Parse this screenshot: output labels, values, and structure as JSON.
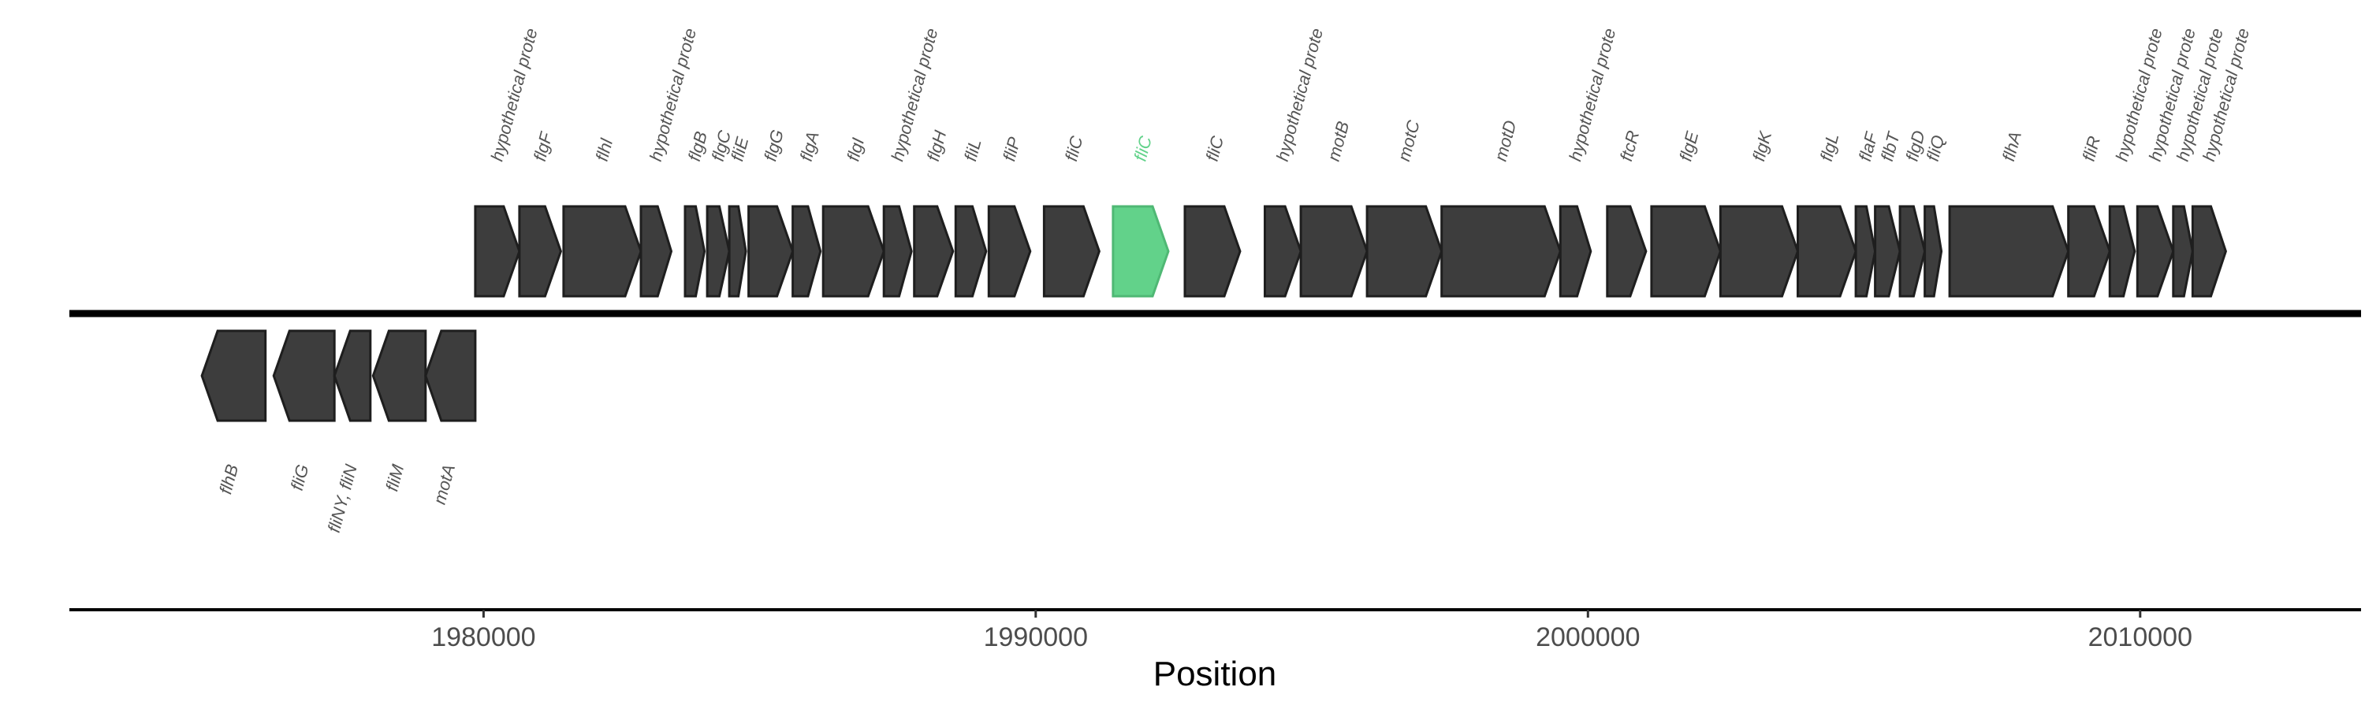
{
  "chart_data": {
    "type": "gene_map",
    "title": "",
    "xlabel": "Position",
    "ylabel": "",
    "xlim": [
      1972500,
      2014000
    ],
    "x_ticks": [
      1980000,
      1990000,
      2000000,
      2010000
    ],
    "x_tick_labels": [
      "1980000",
      "1990000",
      "2000000",
      "2010000"
    ],
    "grid": false,
    "legend": "none",
    "colors": {
      "default": "#3d3d3d",
      "highlight": "#62d28a",
      "label_default": "#555555",
      "label_highlight": "#62d28a",
      "outline": "#1e1e1e"
    },
    "genes": [
      {
        "name": "flhB",
        "start": 1974900,
        "end": 1976050,
        "strand": -1,
        "highlight": false
      },
      {
        "name": "fliG",
        "start": 1976200,
        "end": 1977300,
        "strand": -1,
        "highlight": false
      },
      {
        "name": "fliNY, fliN",
        "start": 1977300,
        "end": 1977950,
        "strand": -1,
        "highlight": false
      },
      {
        "name": "fliM",
        "start": 1978000,
        "end": 1978950,
        "strand": -1,
        "highlight": false
      },
      {
        "name": "motA",
        "start": 1978950,
        "end": 1979850,
        "strand": -1,
        "highlight": false
      },
      {
        "name": "hypothetical prote",
        "start": 1979850,
        "end": 1980650,
        "strand": 1,
        "highlight": false
      },
      {
        "name": "flgF",
        "start": 1980650,
        "end": 1981400,
        "strand": 1,
        "highlight": false
      },
      {
        "name": "flhl",
        "start": 1981450,
        "end": 1982850,
        "strand": 1,
        "highlight": false
      },
      {
        "name": "hypothetical prote",
        "start": 1982850,
        "end": 1983400,
        "strand": 1,
        "highlight": false
      },
      {
        "name": "flgB",
        "start": 1983650,
        "end": 1984000,
        "strand": 1,
        "highlight": false
      },
      {
        "name": "flgC",
        "start": 1984050,
        "end": 1984450,
        "strand": 1,
        "highlight": false
      },
      {
        "name": "fliE",
        "start": 1984450,
        "end": 1984750,
        "strand": 1,
        "highlight": false
      },
      {
        "name": "flgG",
        "start": 1984800,
        "end": 1985600,
        "strand": 1,
        "highlight": false
      },
      {
        "name": "flgA",
        "start": 1985600,
        "end": 1986100,
        "strand": 1,
        "highlight": false
      },
      {
        "name": "flgI",
        "start": 1986150,
        "end": 1987250,
        "strand": 1,
        "highlight": false
      },
      {
        "name": "hypothetical prote",
        "start": 1987250,
        "end": 1987750,
        "strand": 1,
        "highlight": false
      },
      {
        "name": "flgH",
        "start": 1987800,
        "end": 1988500,
        "strand": 1,
        "highlight": false
      },
      {
        "name": "fliL",
        "start": 1988550,
        "end": 1989100,
        "strand": 1,
        "highlight": false
      },
      {
        "name": "fliP",
        "start": 1989150,
        "end": 1989900,
        "strand": 1,
        "highlight": false
      },
      {
        "name": "fliC",
        "start": 1990150,
        "end": 1991150,
        "strand": 1,
        "highlight": false
      },
      {
        "name": "fliC",
        "start": 1991400,
        "end": 1992400,
        "strand": 1,
        "highlight": true
      },
      {
        "name": "fliC",
        "start": 1992700,
        "end": 1993700,
        "strand": 1,
        "highlight": false
      },
      {
        "name": "hypothetical prote",
        "start": 1994150,
        "end": 1994800,
        "strand": 1,
        "highlight": false
      },
      {
        "name": "motB",
        "start": 1994800,
        "end": 1996000,
        "strand": 1,
        "highlight": false
      },
      {
        "name": "motC",
        "start": 1996000,
        "end": 1997350,
        "strand": 1,
        "highlight": false
      },
      {
        "name": "motD",
        "start": 1997350,
        "end": 1999500,
        "strand": 1,
        "highlight": false
      },
      {
        "name": "hypothetical prote",
        "start": 1999500,
        "end": 2000050,
        "strand": 1,
        "highlight": false
      },
      {
        "name": "ftcR",
        "start": 2000350,
        "end": 2001050,
        "strand": 1,
        "highlight": false
      },
      {
        "name": "flgE",
        "start": 2001150,
        "end": 2002400,
        "strand": 1,
        "highlight": false
      },
      {
        "name": "flgK",
        "start": 2002400,
        "end": 2003800,
        "strand": 1,
        "highlight": false
      },
      {
        "name": "flgL",
        "start": 2003800,
        "end": 2004850,
        "strand": 1,
        "highlight": false
      },
      {
        "name": "flaF",
        "start": 2004850,
        "end": 2005200,
        "strand": 1,
        "highlight": false
      },
      {
        "name": "flbT",
        "start": 2005200,
        "end": 2005650,
        "strand": 1,
        "highlight": false
      },
      {
        "name": "flgD",
        "start": 2005650,
        "end": 2006100,
        "strand": 1,
        "highlight": false
      },
      {
        "name": "fliQ",
        "start": 2006100,
        "end": 2006400,
        "strand": 1,
        "highlight": false
      },
      {
        "name": "flhA",
        "start": 2006550,
        "end": 2008700,
        "strand": 1,
        "highlight": false
      },
      {
        "name": "fliR",
        "start": 2008700,
        "end": 2009450,
        "strand": 1,
        "highlight": false
      },
      {
        "name": "hypothetical prote",
        "start": 2009450,
        "end": 2009900,
        "strand": 1,
        "highlight": false
      },
      {
        "name": "hypothetical prote",
        "start": 2009950,
        "end": 2010600,
        "strand": 1,
        "highlight": false
      },
      {
        "name": "hypothetical prote",
        "start": 2010600,
        "end": 2010950,
        "strand": 1,
        "highlight": false
      },
      {
        "name": "hypothetical prote",
        "start": 2010950,
        "end": 2011550,
        "strand": 1,
        "highlight": false
      }
    ]
  }
}
